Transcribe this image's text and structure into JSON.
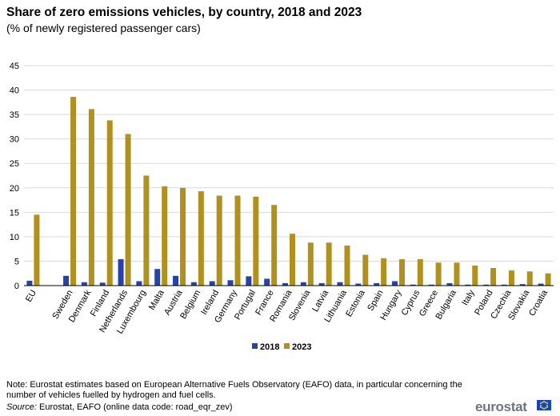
{
  "header": {
    "title": "Share of zero emissions vehicles, by country, 2018 and 2023",
    "subtitle": "(% of newly registered passenger cars)"
  },
  "footer": {
    "note": "Note: Eurostat estimates based on European Alternative Fuels Observatory (EAFO) data, in particular concerning the number of vehicles fuelled by hydrogen and fuel cells.",
    "source_label": "Source:",
    "source_text": "Eurostat, EAFO (online data code: road_eqr_zev)",
    "logo_text": "eurostat"
  },
  "colors": {
    "series_2018": "#2644a7",
    "series_2023": "#b09120",
    "grid": "#d9d9d9",
    "axis": "#000000"
  },
  "chart_data": {
    "type": "bar",
    "title": "Share of zero emissions vehicles, by country, 2018 and 2023",
    "subtitle": "(% of newly registered passenger cars)",
    "categories": [
      "EU",
      "",
      "Sweden",
      "Denmark",
      "Finland",
      "Netherlands",
      "Luxembourg",
      "Malta",
      "Austria",
      "Belgium",
      "Ireland",
      "Germany",
      "Portugal",
      "France",
      "Romania",
      "Slovenia",
      "Latvia",
      "Lithuania",
      "Estonia",
      "Spain",
      "Hungary",
      "Cyprus",
      "Greece",
      "Bulgaria",
      "Italy",
      "Poland",
      "Czechia",
      "Slovakia",
      "Croatia"
    ],
    "series": [
      {
        "name": "2018",
        "values": [
          1.0,
          null,
          2.0,
          0.7,
          0.6,
          5.4,
          0.9,
          3.4,
          2.0,
          0.7,
          0.9,
          1.1,
          1.9,
          1.4,
          0.5,
          0.7,
          0.5,
          0.7,
          0.4,
          0.5,
          0.9,
          0.2,
          0.2,
          0.5,
          0.2,
          0.2,
          0.2,
          0.3,
          0.4
        ]
      },
      {
        "name": "2023",
        "values": [
          14.5,
          null,
          38.6,
          36.1,
          33.8,
          31.0,
          22.5,
          20.3,
          20.0,
          19.3,
          18.4,
          18.4,
          18.2,
          16.5,
          10.6,
          8.8,
          8.8,
          8.2,
          6.3,
          5.6,
          5.4,
          5.4,
          4.7,
          4.7,
          4.1,
          3.6,
          3.1,
          2.9,
          2.5
        ]
      }
    ],
    "yticks": [
      0,
      5,
      10,
      15,
      20,
      25,
      30,
      35,
      40,
      45
    ],
    "ylim": [
      0,
      45
    ],
    "grid": true,
    "legend": "bottom-center"
  }
}
